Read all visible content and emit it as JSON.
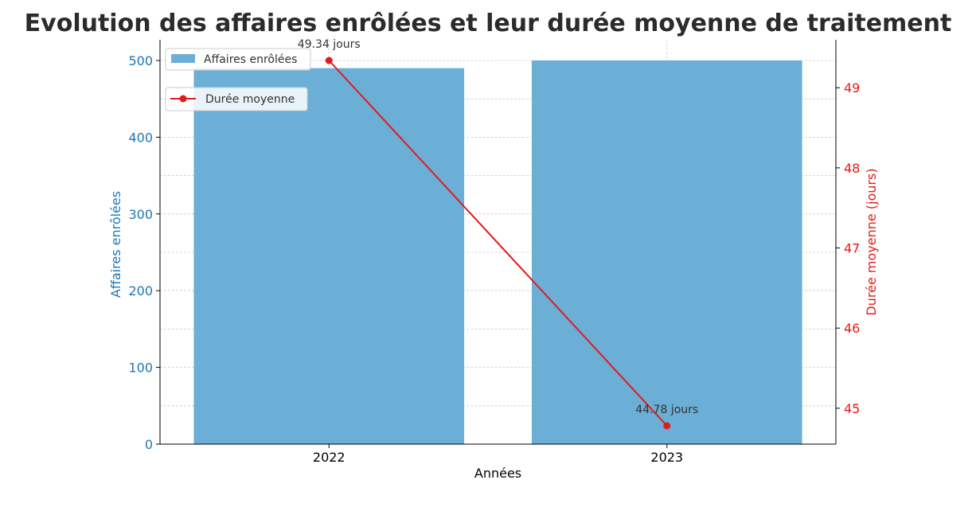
{
  "chart_data": {
    "type": "bar+line",
    "title": "Evolution des affaires enrôlées et leur durée moyenne de traitement",
    "xlabel": "Années",
    "categories": [
      "2022",
      "2023"
    ],
    "series": [
      {
        "name": "Affaires enrôlées",
        "type": "bar",
        "axis": "left",
        "values": [
          490,
          500
        ],
        "color": "#6baed6"
      },
      {
        "name": "Durée moyenne",
        "type": "line",
        "axis": "right",
        "values": [
          49.34,
          44.78
        ],
        "labels": [
          "49.34 jours",
          "44.78 jours"
        ],
        "color": "#e31a1c"
      }
    ],
    "ylabel_left": "Affaires enrôlées",
    "ylabel_right": "Durée moyenne (jours)",
    "ylim_left": [
      0,
      500
    ],
    "yticks_left": [
      "0",
      "100",
      "200",
      "300",
      "400",
      "500"
    ],
    "ylim_right": [
      44.78,
      49.34
    ],
    "yticks_right": [
      "45",
      "46",
      "47",
      "48",
      "49"
    ],
    "left_axis_color": "#1f77b4",
    "right_axis_color": "#e31a1c",
    "grid": true,
    "legend_bar_placement": "top-left",
    "legend_line_placement": "upper-left"
  }
}
